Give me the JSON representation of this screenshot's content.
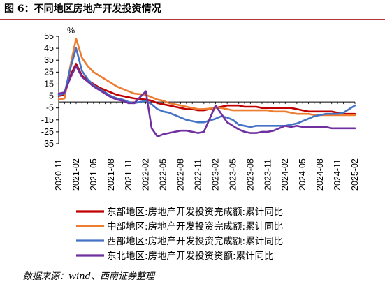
{
  "figure": {
    "title": "图 6：不同地区房地产开发投资情况",
    "source": "数据来源：wind、西南证券整理"
  },
  "chart_data": {
    "type": "line",
    "unit_label": "%",
    "ylim": [
      -35,
      55
    ],
    "yticks": [
      55,
      45,
      35,
      25,
      15,
      5,
      -5,
      -15,
      -25,
      -35
    ],
    "xlim": [
      "2020-11",
      "2025-02"
    ],
    "x_tick_labels": [
      "2020-11",
      "2021-02",
      "2021-05",
      "2021-08",
      "2021-11",
      "2022-02",
      "2022-05",
      "2022-08",
      "2022-11",
      "2023-02",
      "2023-05",
      "2023-08",
      "2023-11",
      "2024-02",
      "2024-05",
      "2024-08",
      "2024-11",
      "2025-02"
    ],
    "grid": false,
    "legend_position": "bottom",
    "series": [
      {
        "name": "东部地区:房地产开发投资完成额:累计同比",
        "color": "#c00000",
        "points": [
          [
            "2020-11",
            5
          ],
          [
            "2020-12",
            6
          ],
          [
            "2021-01",
            22
          ],
          [
            "2021-02",
            32
          ],
          [
            "2021-03",
            22
          ],
          [
            "2021-04",
            18
          ],
          [
            "2021-05",
            15
          ],
          [
            "2021-06",
            12
          ],
          [
            "2021-07",
            10
          ],
          [
            "2021-08",
            8
          ],
          [
            "2021-09",
            6
          ],
          [
            "2021-10",
            5
          ],
          [
            "2021-11",
            4
          ],
          [
            "2021-12",
            3
          ],
          [
            "2022-02",
            2
          ],
          [
            "2022-03",
            1
          ],
          [
            "2022-04",
            -1
          ],
          [
            "2022-05",
            -2
          ],
          [
            "2022-06",
            -3
          ],
          [
            "2022-07",
            -4
          ],
          [
            "2022-08",
            -5
          ],
          [
            "2022-09",
            -6
          ],
          [
            "2022-10",
            -6
          ],
          [
            "2022-11",
            -7
          ],
          [
            "2022-12",
            -7
          ],
          [
            "2023-02",
            -5
          ],
          [
            "2023-03",
            -4
          ],
          [
            "2023-04",
            -3
          ],
          [
            "2023-05",
            -3
          ],
          [
            "2023-06",
            -3
          ],
          [
            "2023-07",
            -4
          ],
          [
            "2023-08",
            -4
          ],
          [
            "2023-09",
            -4
          ],
          [
            "2023-10",
            -5
          ],
          [
            "2023-11",
            -5
          ],
          [
            "2023-12",
            -5
          ],
          [
            "2024-02",
            -5
          ],
          [
            "2024-03",
            -5
          ],
          [
            "2024-04",
            -6
          ],
          [
            "2024-05",
            -7
          ],
          [
            "2024-06",
            -8
          ],
          [
            "2024-07",
            -8
          ],
          [
            "2024-08",
            -8
          ],
          [
            "2024-09",
            -8
          ],
          [
            "2024-10",
            -8
          ],
          [
            "2024-11",
            -9
          ],
          [
            "2024-12",
            -10
          ],
          [
            "2025-02",
            -10
          ]
        ]
      },
      {
        "name": "中部地区:房地产开发投资完成额:累计同比",
        "color": "#ed7d31",
        "points": [
          [
            "2020-11",
            2
          ],
          [
            "2020-12",
            3
          ],
          [
            "2021-01",
            30
          ],
          [
            "2021-02",
            53
          ],
          [
            "2021-03",
            37
          ],
          [
            "2021-04",
            30
          ],
          [
            "2021-05",
            25
          ],
          [
            "2021-06",
            22
          ],
          [
            "2021-07",
            19
          ],
          [
            "2021-08",
            16
          ],
          [
            "2021-09",
            13
          ],
          [
            "2021-10",
            11
          ],
          [
            "2021-11",
            9
          ],
          [
            "2021-12",
            7
          ],
          [
            "2022-02",
            6
          ],
          [
            "2022-03",
            4
          ],
          [
            "2022-04",
            2
          ],
          [
            "2022-05",
            1
          ],
          [
            "2022-06",
            -1
          ],
          [
            "2022-07",
            -2
          ],
          [
            "2022-08",
            -3
          ],
          [
            "2022-09",
            -4
          ],
          [
            "2022-10",
            -5
          ],
          [
            "2022-11",
            -6
          ],
          [
            "2022-12",
            -6
          ],
          [
            "2023-02",
            -5
          ],
          [
            "2023-03",
            -5
          ],
          [
            "2023-04",
            -6
          ],
          [
            "2023-05",
            -7
          ],
          [
            "2023-06",
            -7
          ],
          [
            "2023-07",
            -7
          ],
          [
            "2023-08",
            -7
          ],
          [
            "2023-09",
            -7
          ],
          [
            "2023-10",
            -7
          ],
          [
            "2023-11",
            -7
          ],
          [
            "2023-12",
            -8
          ],
          [
            "2024-02",
            -8
          ],
          [
            "2024-03",
            -9
          ],
          [
            "2024-04",
            -10
          ],
          [
            "2024-05",
            -10
          ],
          [
            "2024-06",
            -10
          ],
          [
            "2024-07",
            -11
          ],
          [
            "2024-08",
            -11
          ],
          [
            "2024-09",
            -11
          ],
          [
            "2024-10",
            -11
          ],
          [
            "2024-11",
            -11
          ],
          [
            "2024-12",
            -11
          ],
          [
            "2025-02",
            -11
          ]
        ]
      },
      {
        "name": "西部地区:房地产开发投资完成额:累计同比",
        "color": "#4472c4",
        "points": [
          [
            "2020-11",
            6
          ],
          [
            "2020-12",
            7
          ],
          [
            "2021-01",
            28
          ],
          [
            "2021-02",
            45
          ],
          [
            "2021-03",
            26
          ],
          [
            "2021-04",
            19
          ],
          [
            "2021-05",
            14
          ],
          [
            "2021-06",
            11
          ],
          [
            "2021-07",
            8
          ],
          [
            "2021-08",
            5
          ],
          [
            "2021-09",
            3
          ],
          [
            "2021-10",
            2
          ],
          [
            "2021-11",
            0
          ],
          [
            "2021-12",
            -1
          ],
          [
            "2022-02",
            1
          ],
          [
            "2022-03",
            -2
          ],
          [
            "2022-04",
            -6
          ],
          [
            "2022-05",
            -8
          ],
          [
            "2022-06",
            -9
          ],
          [
            "2022-07",
            -11
          ],
          [
            "2022-08",
            -13
          ],
          [
            "2022-09",
            -15
          ],
          [
            "2022-10",
            -16
          ],
          [
            "2022-11",
            -17
          ],
          [
            "2022-12",
            -17
          ],
          [
            "2023-02",
            -14
          ],
          [
            "2023-03",
            -12
          ],
          [
            "2023-04",
            -13
          ],
          [
            "2023-05",
            -15
          ],
          [
            "2023-06",
            -19
          ],
          [
            "2023-07",
            -20
          ],
          [
            "2023-08",
            -21
          ],
          [
            "2023-09",
            -20
          ],
          [
            "2023-10",
            -20
          ],
          [
            "2023-11",
            -20
          ],
          [
            "2023-12",
            -20
          ],
          [
            "2024-02",
            -20
          ],
          [
            "2024-03",
            -19
          ],
          [
            "2024-04",
            -18
          ],
          [
            "2024-05",
            -16
          ],
          [
            "2024-06",
            -14
          ],
          [
            "2024-07",
            -12
          ],
          [
            "2024-08",
            -11
          ],
          [
            "2024-09",
            -10
          ],
          [
            "2024-10",
            -10
          ],
          [
            "2024-11",
            -10
          ],
          [
            "2024-12",
            -9
          ],
          [
            "2025-02",
            -3
          ]
        ]
      },
      {
        "name": "东北地区:房地产开发投资资额:累计同比",
        "color": "#7030a0",
        "points": [
          [
            "2020-11",
            7
          ],
          [
            "2020-12",
            8
          ],
          [
            "2021-01",
            20
          ],
          [
            "2021-02",
            30
          ],
          [
            "2021-03",
            21
          ],
          [
            "2021-04",
            17
          ],
          [
            "2021-05",
            13
          ],
          [
            "2021-06",
            10
          ],
          [
            "2021-07",
            7
          ],
          [
            "2021-08",
            4
          ],
          [
            "2021-09",
            2
          ],
          [
            "2021-10",
            1
          ],
          [
            "2021-11",
            -1
          ],
          [
            "2021-12",
            -1
          ],
          [
            "2022-02",
            9
          ],
          [
            "2022-03",
            -22
          ],
          [
            "2022-04",
            -29
          ],
          [
            "2022-05",
            -27
          ],
          [
            "2022-06",
            -26
          ],
          [
            "2022-07",
            -25
          ],
          [
            "2022-08",
            -24
          ],
          [
            "2022-09",
            -24
          ],
          [
            "2022-10",
            -25
          ],
          [
            "2022-11",
            -26
          ],
          [
            "2022-12",
            -25
          ],
          [
            "2023-02",
            -3
          ],
          [
            "2023-03",
            -10
          ],
          [
            "2023-04",
            -17
          ],
          [
            "2023-05",
            -20
          ],
          [
            "2023-06",
            -23
          ],
          [
            "2023-07",
            -25
          ],
          [
            "2023-08",
            -26
          ],
          [
            "2023-09",
            -26
          ],
          [
            "2023-10",
            -25
          ],
          [
            "2023-11",
            -25
          ],
          [
            "2023-12",
            -24
          ],
          [
            "2024-02",
            -20
          ],
          [
            "2024-03",
            -21
          ],
          [
            "2024-04",
            -20
          ],
          [
            "2024-05",
            -21
          ],
          [
            "2024-06",
            -21
          ],
          [
            "2024-07",
            -21
          ],
          [
            "2024-08",
            -21
          ],
          [
            "2024-09",
            -21
          ],
          [
            "2024-10",
            -22
          ],
          [
            "2024-11",
            -22
          ],
          [
            "2024-12",
            -22
          ],
          [
            "2025-02",
            -22
          ]
        ]
      }
    ]
  }
}
